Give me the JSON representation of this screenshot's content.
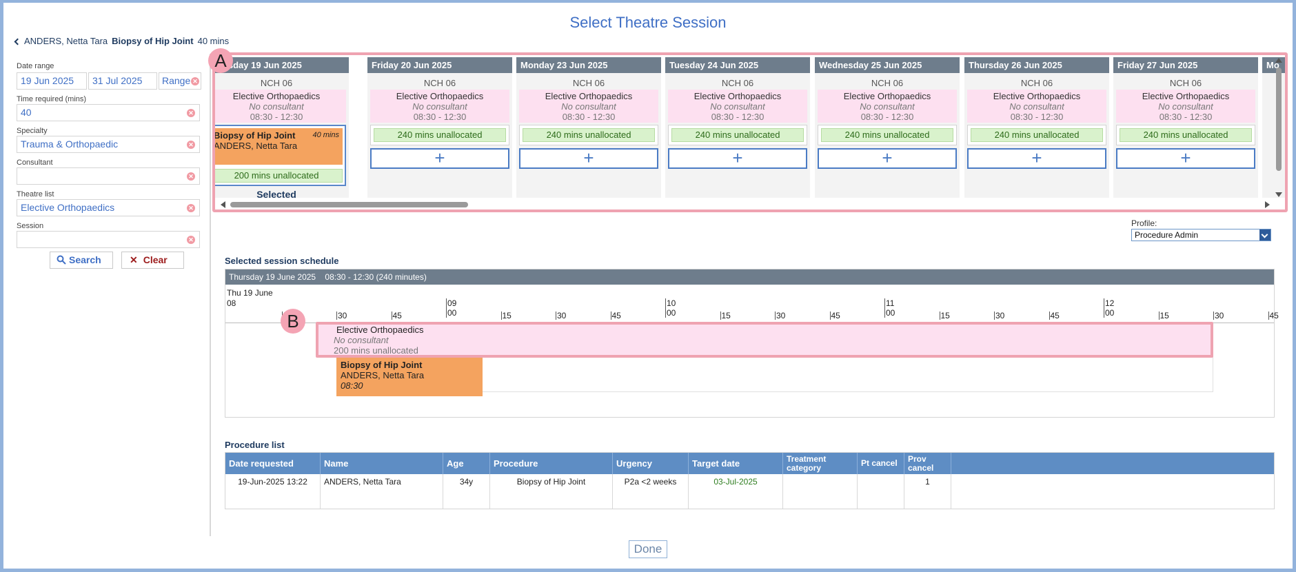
{
  "page_title": "Select Theatre Session",
  "patient": {
    "name": "ANDERS, Netta Tara",
    "procedure": "Biopsy of Hip Joint",
    "duration": "40 mins"
  },
  "filters": {
    "date_range_label": "Date range",
    "date_from": "19 Jun 2025",
    "date_to": "31 Jul 2025",
    "range_button": "Range",
    "time_required_label": "Time required (mins)",
    "time_required": "40",
    "specialty_label": "Specialty",
    "specialty": "Trauma & Orthopaedic",
    "consultant_label": "Consultant",
    "consultant": "",
    "theatre_list_label": "Theatre list",
    "theatre_list": "Elective Orthopaedics",
    "session_label": "Session",
    "session": "",
    "search_label": "Search",
    "clear_label": "Clear"
  },
  "calendar": {
    "days": [
      {
        "header": "Thursday 19 Jun 2025",
        "room": "NCH 06",
        "list": "Elective Orthopaedics",
        "consultant": "No consultant",
        "time": "08:30 - 12:30",
        "selected": true,
        "booking_name": "Biopsy of Hip Joint",
        "booking_mins": "40 mins",
        "booking_patient": "ANDERS, Netta Tara",
        "unallocated": "200 mins unallocated",
        "selected_label": "Selected"
      },
      {
        "header": "Friday 20 Jun 2025",
        "room": "NCH 06",
        "list": "Elective Orthopaedics",
        "consultant": "No consultant",
        "time": "08:30 - 12:30",
        "selected": false,
        "unallocated": "240 mins unallocated"
      },
      {
        "header": "Monday 23 Jun 2025",
        "room": "NCH 06",
        "list": "Elective Orthopaedics",
        "consultant": "No consultant",
        "time": "08:30 - 12:30",
        "selected": false,
        "unallocated": "240 mins unallocated"
      },
      {
        "header": "Tuesday 24 Jun 2025",
        "room": "NCH 06",
        "list": "Elective Orthopaedics",
        "consultant": "No consultant",
        "time": "08:30 - 12:30",
        "selected": false,
        "unallocated": "240 mins unallocated"
      },
      {
        "header": "Wednesday 25 Jun 2025",
        "room": "NCH 06",
        "list": "Elective Orthopaedics",
        "consultant": "No consultant",
        "time": "08:30 - 12:30",
        "selected": false,
        "unallocated": "240 mins unallocated"
      },
      {
        "header": "Thursday 26 Jun 2025",
        "room": "NCH 06",
        "list": "Elective Orthopaedics",
        "consultant": "No consultant",
        "time": "08:30 - 12:30",
        "selected": false,
        "unallocated": "240 mins unallocated"
      },
      {
        "header": "Friday 27 Jun 2025",
        "room": "NCH 06",
        "list": "Elective Orthopaedics",
        "consultant": "No consultant",
        "time": "08:30 - 12:30",
        "selected": false,
        "unallocated": "240 mins unallocated"
      },
      {
        "header": "Mo",
        "room": "",
        "list": "",
        "consultant": "",
        "time": "",
        "selected": false,
        "unallocated": ""
      }
    ]
  },
  "badges": {
    "a": "A",
    "b": "B"
  },
  "profile": {
    "label": "Profile:",
    "value": "Procedure Admin"
  },
  "schedule": {
    "title": "Selected session schedule",
    "header": "Thursday 19 June 2025    08:30 - 12:30 (240 minutes)",
    "day_label": "Thu 19 June",
    "timeline": {
      "start_hour": 8,
      "end_hour": 13,
      "hours": [
        "08",
        "09",
        "10",
        "11",
        "12"
      ]
    },
    "session": {
      "start": "08:30",
      "end": "12:30",
      "list": "Elective Orthopaedics",
      "consultant": "No consultant",
      "unallocated": "200 mins unallocated"
    },
    "procedure": {
      "name": "Biopsy of Hip Joint",
      "patient": "ANDERS, Netta Tara",
      "start": "08:30",
      "duration_mins": 40
    }
  },
  "procedure_list": {
    "title": "Procedure list",
    "columns": [
      "Date requested",
      "Name",
      "Age",
      "Procedure",
      "Urgency",
      "Target date",
      "Treatment category",
      "Pt cancel",
      "Prov cancel"
    ],
    "rows": [
      {
        "date_requested": "19-Jun-2025 13:22",
        "name": "ANDERS, Netta Tara",
        "age": "34y",
        "procedure": "Biopsy of Hip Joint",
        "urgency": "P2a <2 weeks",
        "target_date": "03-Jul-2025",
        "treatment_category": "",
        "pt_cancel": "",
        "prov_cancel": "1"
      }
    ],
    "target_date_color": "#2e7d1f"
  },
  "done_label": "Done"
}
